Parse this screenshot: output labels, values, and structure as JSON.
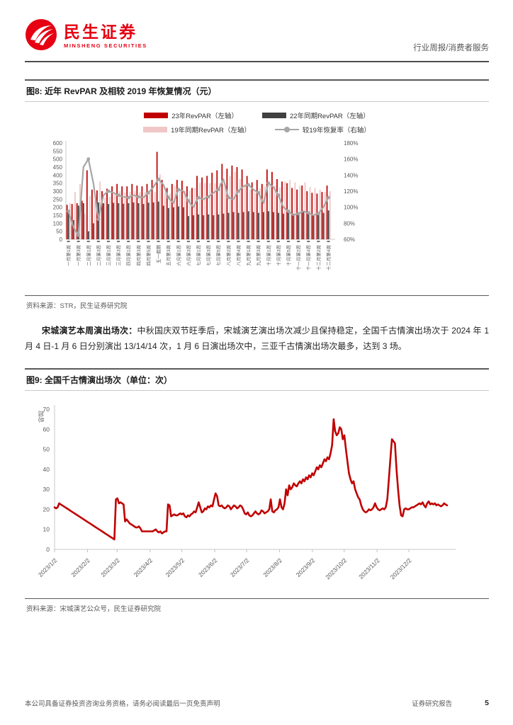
{
  "header": {
    "logo_cn": "民生证券",
    "logo_en": "MINSHENG SECURITIES",
    "right_label": "行业周报/消费者服务"
  },
  "colors": {
    "brand_red": "#e60012",
    "bar_red": "#c00000",
    "bar_dark": "#404040",
    "bar_pink": "#f0c6c6",
    "recovery_line": "#a6a6a6",
    "fig9_line": "#c00000"
  },
  "figure8": {
    "caption": "图8: 近年 RevPAR 及相较 2019 年恢复情况（元）",
    "source": "资料来源：STR，民生证券研究院"
  },
  "paragraph": {
    "lead": "宋城演艺本周演出场次：",
    "body": "中秋国庆双节旺季后，宋城演艺演出场次减少且保持稳定，全国千古情演出场次于 2024 年 1 月 4 日-1 月 6 日分别演出 13/14/14 次，1 月 6 日演出场次中，三亚千古情演出场次最多，达到 3 场。"
  },
  "figure9": {
    "caption": "图9: 全国千古情演出场次（单位：次）",
    "source": "资料来源：宋城演艺公众号，民生证券研究院"
  },
  "footer": {
    "left": "本公司具备证券投资咨询业务资格，请务必阅读最后一页免责声明",
    "right": "证券研究报告",
    "page": "5"
  },
  "chart_data": [
    {
      "type": "bar",
      "title": "近年RevPAR及相较2019年恢复情况（元）",
      "left_axis": {
        "min": 0,
        "max": 600,
        "step": 50
      },
      "right_axis": {
        "min": 60,
        "max": 180,
        "step": 20,
        "suffix": "%"
      },
      "legend_position": "top",
      "grid": false,
      "categories": [
        "一月第1周",
        "",
        "一月第3周",
        "",
        "二月第1周",
        "",
        "二月第3周",
        "",
        "三月第1周",
        "",
        "三月第3周",
        "",
        "四月第1周",
        "",
        "四月第3周",
        "",
        "四月第5周",
        "",
        "五一假期",
        "",
        "五月第3周",
        "",
        "六月第1周",
        "",
        "六月第3周",
        "",
        "七月第1周",
        "",
        "七月第3周",
        "",
        "七月第5周",
        "",
        "八月第2周",
        "",
        "八月第4周",
        "",
        "九月第1周",
        "",
        "九月第3周",
        "",
        "十月第1周",
        "",
        "十月第3周",
        "",
        "十月第5周",
        "",
        "十一月第2周",
        "",
        "十一月第4周",
        "",
        "十二月第2周",
        "",
        "十二月第4周"
      ],
      "series": [
        {
          "name": "23年RevPAR（左轴）",
          "type": "bar",
          "axis": "left",
          "color": "#c00000",
          "values": [
            215,
            220,
            225,
            240,
            430,
            310,
            305,
            300,
            315,
            330,
            345,
            330,
            330,
            345,
            335,
            330,
            345,
            370,
            545,
            370,
            320,
            345,
            370,
            365,
            330,
            320,
            395,
            385,
            395,
            415,
            430,
            470,
            440,
            460,
            450,
            435,
            395,
            355,
            370,
            345,
            435,
            420,
            375,
            360,
            350,
            320,
            310,
            335,
            300,
            290,
            285,
            295,
            335
          ]
        },
        {
          "name": "22年同期RevPAR（左轴）",
          "type": "bar",
          "axis": "left",
          "color": "#404040",
          "values": [
            170,
            120,
            210,
            225,
            50,
            100,
            230,
            225,
            220,
            228,
            225,
            222,
            225,
            230,
            225,
            220,
            228,
            230,
            235,
            210,
            195,
            200,
            205,
            200,
            145,
            150,
            155,
            150,
            155,
            150,
            155,
            160,
            165,
            170,
            165,
            170,
            175,
            170,
            165,
            170,
            175,
            170,
            165,
            160,
            165,
            160,
            165,
            170,
            160,
            155,
            160,
            165,
            180
          ]
        },
        {
          "name": "19年同期RevPAR（左轴）",
          "type": "bar",
          "axis": "left",
          "color": "#f0c6c6",
          "values": [
            225,
            295,
            345,
            160,
            270,
            240,
            360,
            260,
            265,
            280,
            300,
            290,
            295,
            300,
            295,
            295,
            290,
            295,
            405,
            290,
            285,
            330,
            305,
            305,
            305,
            320,
            355,
            350,
            350,
            350,
            350,
            350,
            395,
            420,
            375,
            345,
            310,
            290,
            315,
            330,
            335,
            335,
            325,
            360,
            370,
            355,
            335,
            355,
            325,
            320,
            310,
            295,
            300
          ]
        },
        {
          "name": "较19年恢复率（右轴）",
          "type": "line",
          "axis": "right",
          "color": "#a6a6a6",
          "unit": "%",
          "values": [
            95,
            75,
            65,
            150,
            160,
            130,
            85,
            115,
            120,
            118,
            115,
            113,
            112,
            115,
            113,
            112,
            118,
            125,
            135,
            128,
            112,
            105,
            122,
            120,
            108,
            100,
            112,
            110,
            113,
            118,
            122,
            135,
            112,
            110,
            120,
            126,
            128,
            122,
            118,
            105,
            130,
            125,
            115,
            100,
            95,
            90,
            92,
            95,
            93,
            90,
            92,
            100,
            112
          ]
        }
      ]
    },
    {
      "type": "line",
      "title": "全国千古情演出场次（单位：次）",
      "ylabel": "加总",
      "color": "#c00000",
      "ylim": [
        0,
        70
      ],
      "ystep": 10,
      "grid": false,
      "x_labels": [
        "2023/1/2",
        "2023/2/2",
        "2023/3/2",
        "2023/4/2",
        "2023/5/2",
        "2023/6/2",
        "2023/7/2",
        "2023/8/2",
        "2023/9/2",
        "2023/10/2",
        "2023/11/2",
        "2023/12/2"
      ],
      "x_label_days": [
        0,
        31,
        59,
        90,
        120,
        151,
        181,
        212,
        243,
        273,
        304,
        334
      ],
      "domain_days": 370,
      "values": [
        21,
        20.5,
        21,
        23,
        22.5,
        22,
        21.5,
        21,
        20.5,
        20,
        19.5,
        19,
        18.5,
        18,
        17.5,
        17,
        16.5,
        16,
        15.5,
        15,
        14.5,
        14,
        13.5,
        13,
        12.5,
        12,
        11.5,
        11,
        10.5,
        10,
        9.5,
        9,
        8.5,
        8,
        7.5,
        7,
        6.5,
        6,
        5.5,
        5,
        25,
        25.5,
        23,
        23.5,
        23,
        22.5,
        14,
        15,
        14,
        13,
        12.5,
        12,
        11.5,
        11,
        11,
        11.5,
        10.5,
        9,
        9,
        9,
        9,
        9,
        9,
        9,
        9,
        9.5,
        10,
        9,
        8.5,
        9,
        8,
        8.5,
        9,
        9,
        22.5,
        22,
        16.5,
        17,
        17.5,
        17,
        17,
        17.5,
        18,
        17.5,
        18,
        16.5,
        16,
        17,
        16.5,
        17.5,
        18,
        19,
        18.5,
        21,
        23.5,
        21,
        18.5,
        19,
        20.5,
        20,
        21.5,
        21,
        22,
        21.5,
        25,
        28,
        26.5,
        22,
        21.5,
        22,
        21,
        20.5,
        21,
        22,
        21.5,
        20,
        21,
        22,
        21.5,
        20.5,
        21,
        22,
        21.5,
        20,
        18,
        17.5,
        18.5,
        17,
        16.5,
        17,
        18,
        19,
        18,
        17.5,
        18,
        19.5,
        19,
        18,
        18.5,
        19,
        20,
        25,
        19,
        18.5,
        19.5,
        20,
        21,
        25,
        21,
        20,
        23,
        30,
        27,
        32,
        30,
        31,
        33,
        32,
        31.5,
        33,
        34,
        33,
        35,
        34,
        36,
        35,
        37,
        36,
        38,
        37,
        39,
        41,
        40,
        42,
        41,
        43,
        45,
        44,
        46,
        45,
        48,
        52,
        65,
        59,
        57,
        58,
        61,
        60,
        55,
        57,
        50,
        44,
        38,
        35,
        33,
        34,
        30,
        28,
        26,
        25,
        22,
        20,
        19,
        18.5,
        19,
        20,
        19.5,
        20,
        21,
        23,
        21,
        20,
        19.5,
        20,
        20.5,
        20,
        21,
        25,
        35,
        45,
        55,
        54,
        53,
        40,
        30,
        22,
        17,
        16.5,
        20,
        20.5,
        20,
        20,
        20.5,
        21,
        21,
        21.5,
        22,
        22.5,
        23,
        22.5,
        23.5,
        22,
        21,
        23,
        24,
        22.5,
        23,
        22.5,
        23,
        22,
        22.5,
        22,
        21.5,
        22,
        23,
        22.5,
        22
      ]
    }
  ]
}
